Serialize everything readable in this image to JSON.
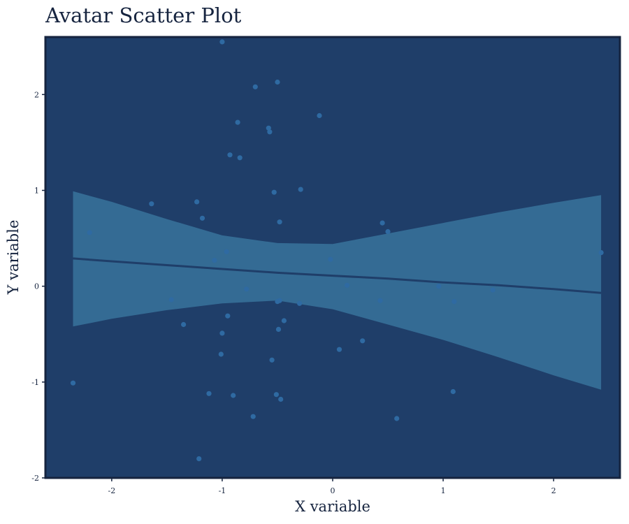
{
  "chart_data": {
    "type": "scatter",
    "title": "Avatar Scatter Plot",
    "xlabel": "X variable",
    "ylabel": "Y variable",
    "xlim": [
      -2.6,
      2.6
    ],
    "ylim": [
      -2.0,
      2.6
    ],
    "x_ticks": [
      -2,
      -1,
      0,
      1,
      2
    ],
    "y_ticks": [
      -2,
      -1,
      0,
      1,
      2
    ],
    "x_tick_labels": [
      "-2",
      "-1",
      "0",
      "1",
      "2"
    ],
    "y_tick_labels": [
      "-2",
      "-1",
      "0",
      "1",
      "2"
    ],
    "grid": false,
    "legend": "none",
    "colors": {
      "panel": "#1f3e69",
      "frame": "#16243f",
      "points": "#2f6aa2",
      "band": "#346b94",
      "line": "#1f3e69"
    },
    "points": [
      {
        "x": -1.0,
        "y": 2.55
      },
      {
        "x": -0.5,
        "y": 2.13
      },
      {
        "x": -0.7,
        "y": 2.08
      },
      {
        "x": -0.12,
        "y": 1.78
      },
      {
        "x": -0.86,
        "y": 1.71
      },
      {
        "x": -0.58,
        "y": 1.65
      },
      {
        "x": -0.57,
        "y": 1.61
      },
      {
        "x": -0.93,
        "y": 1.37
      },
      {
        "x": -0.84,
        "y": 1.34
      },
      {
        "x": -0.29,
        "y": 1.01
      },
      {
        "x": -0.53,
        "y": 0.98
      },
      {
        "x": -1.23,
        "y": 0.88
      },
      {
        "x": -1.64,
        "y": 0.86
      },
      {
        "x": -1.18,
        "y": 0.71
      },
      {
        "x": -0.48,
        "y": 0.67
      },
      {
        "x": 0.45,
        "y": 0.66
      },
      {
        "x": 0.5,
        "y": 0.57
      },
      {
        "x": -2.2,
        "y": 0.56
      },
      {
        "x": -0.96,
        "y": 0.36
      },
      {
        "x": 2.43,
        "y": 0.35
      },
      {
        "x": -1.07,
        "y": 0.27
      },
      {
        "x": -0.02,
        "y": 0.28
      },
      {
        "x": 0.13,
        "y": 0.01
      },
      {
        "x": 0.96,
        "y": 0.0
      },
      {
        "x": 1.45,
        "y": -0.04
      },
      {
        "x": -0.78,
        "y": -0.03
      },
      {
        "x": -1.46,
        "y": -0.14
      },
      {
        "x": -0.48,
        "y": -0.15
      },
      {
        "x": -0.5,
        "y": -0.16
      },
      {
        "x": -0.3,
        "y": -0.18
      },
      {
        "x": 0.43,
        "y": -0.15
      },
      {
        "x": 1.1,
        "y": -0.16
      },
      {
        "x": -0.95,
        "y": -0.31
      },
      {
        "x": -0.44,
        "y": -0.36
      },
      {
        "x": -1.35,
        "y": -0.4
      },
      {
        "x": -0.49,
        "y": -0.45
      },
      {
        "x": -1.0,
        "y": -0.49
      },
      {
        "x": 0.27,
        "y": -0.57
      },
      {
        "x": 0.06,
        "y": -0.66
      },
      {
        "x": -1.01,
        "y": -0.71
      },
      {
        "x": -0.55,
        "y": -0.77
      },
      {
        "x": -2.35,
        "y": -1.01
      },
      {
        "x": -1.12,
        "y": -1.12
      },
      {
        "x": -0.9,
        "y": -1.14
      },
      {
        "x": -0.51,
        "y": -1.13
      },
      {
        "x": -0.47,
        "y": -1.18
      },
      {
        "x": 1.09,
        "y": -1.1
      },
      {
        "x": -0.72,
        "y": -1.36
      },
      {
        "x": 0.58,
        "y": -1.38
      },
      {
        "x": -1.21,
        "y": -1.8
      }
    ],
    "regression": {
      "x": [
        -2.35,
        -2.0,
        -1.5,
        -1.0,
        -0.5,
        0.0,
        0.5,
        1.0,
        1.5,
        2.0,
        2.43
      ],
      "y": [
        0.29,
        0.26,
        0.22,
        0.18,
        0.14,
        0.11,
        0.08,
        0.04,
        0.01,
        -0.03,
        -0.07
      ],
      "lower": [
        -0.42,
        -0.34,
        -0.25,
        -0.18,
        -0.15,
        -0.24,
        -0.4,
        -0.56,
        -0.74,
        -0.93,
        -1.08
      ],
      "upper": [
        0.99,
        0.88,
        0.7,
        0.53,
        0.45,
        0.44,
        0.55,
        0.66,
        0.77,
        0.87,
        0.95
      ]
    }
  }
}
